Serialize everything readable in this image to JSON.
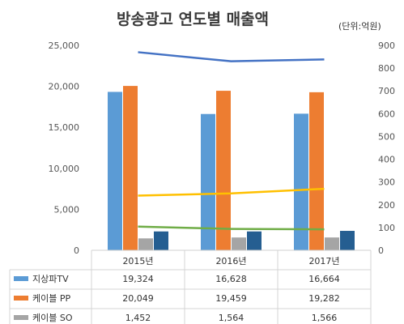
{
  "chart_data": {
    "type": "bar",
    "title": "방송광고 연도별 매출액",
    "unit_label": "(단위:억원)",
    "categories": [
      "2015년",
      "2016년",
      "2017년"
    ],
    "left_axis": {
      "ylim": [
        0,
        25000
      ],
      "ticks": [
        "0",
        "5,000",
        "10,000",
        "15,000",
        "20,000",
        "25,000"
      ]
    },
    "right_axis": {
      "ylim": [
        0,
        900
      ],
      "ticks": [
        "0",
        "100",
        "200",
        "300",
        "400",
        "500",
        "600",
        "700",
        "800",
        "900"
      ]
    },
    "grid": false,
    "series": [
      {
        "name": "지상파TV",
        "kind": "bar",
        "axis": "left",
        "color": "#5b9bd5",
        "values": [
          19324,
          16628,
          16664
        ],
        "labels": [
          "19,324",
          "16,628",
          "16,664"
        ]
      },
      {
        "name": "케이블 PP",
        "kind": "bar",
        "axis": "left",
        "color": "#ed7d31",
        "values": [
          20049,
          19459,
          19282
        ],
        "labels": [
          "20,049",
          "19,459",
          "19,282"
        ]
      },
      {
        "name": "케이블 SO",
        "kind": "bar",
        "axis": "left",
        "color": "#a5a5a5",
        "values": [
          1452,
          1564,
          1566
        ],
        "labels": [
          "1,452",
          "1,564",
          "1,566"
        ]
      },
      {
        "kind": "bar",
        "axis": "left",
        "color": "#255e91",
        "values": [
          2300,
          2300,
          2370
        ]
      },
      {
        "kind": "line",
        "axis": "right",
        "color": "#4472c4",
        "values": [
          870,
          830,
          838
        ]
      },
      {
        "kind": "line",
        "axis": "right",
        "color": "#ffc000",
        "values": [
          240,
          250,
          270
        ]
      },
      {
        "kind": "line",
        "axis": "right",
        "color": "#70ad47",
        "values": [
          104,
          94,
          92
        ]
      }
    ]
  }
}
